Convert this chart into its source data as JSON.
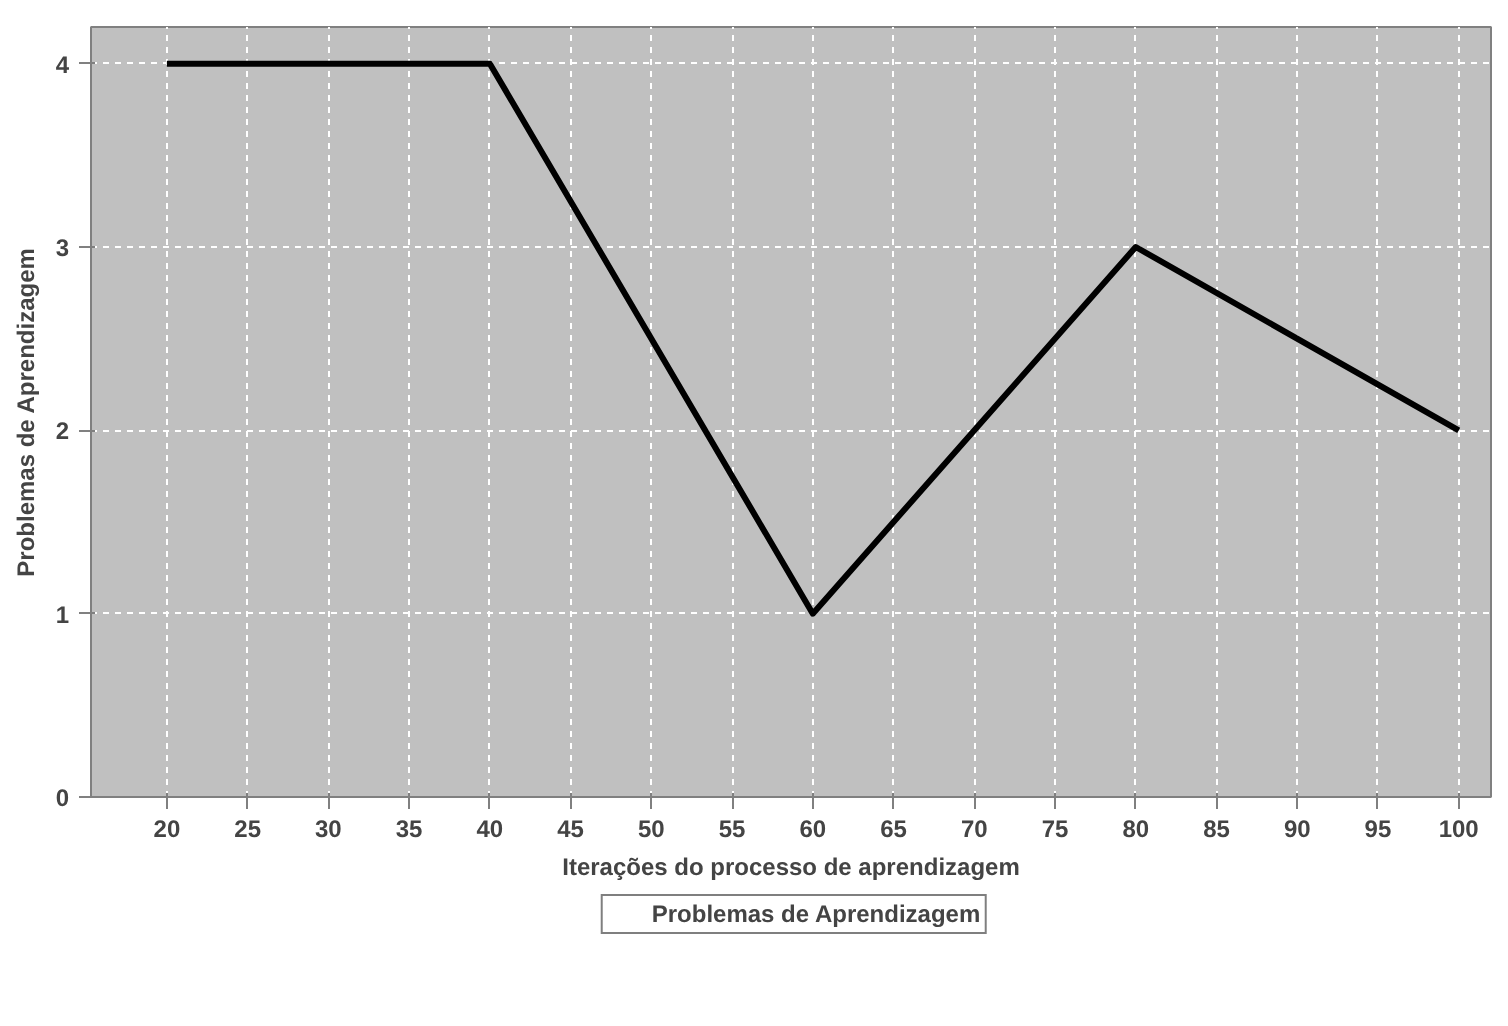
{
  "chart_data": {
    "type": "line",
    "xlabel": "Iterações do processo de aprendizagem",
    "ylabel": "Problemas de Aprendizagem",
    "x": [
      20,
      40,
      60,
      80,
      100
    ],
    "series": [
      {
        "name": "Problemas de Aprendizagem",
        "color": "#000000",
        "values": [
          4,
          4,
          1,
          3,
          2
        ]
      }
    ],
    "xlim": [
      15.3,
      102
    ],
    "ylim": [
      0,
      4.2
    ],
    "xticks": [
      20,
      25,
      30,
      35,
      40,
      45,
      50,
      55,
      60,
      65,
      70,
      75,
      80,
      85,
      90,
      95,
      100
    ],
    "yticks": [
      0,
      1,
      2,
      3,
      4
    ],
    "grid": true,
    "legend": "bottom",
    "marker": "none",
    "line_style": "solid"
  }
}
